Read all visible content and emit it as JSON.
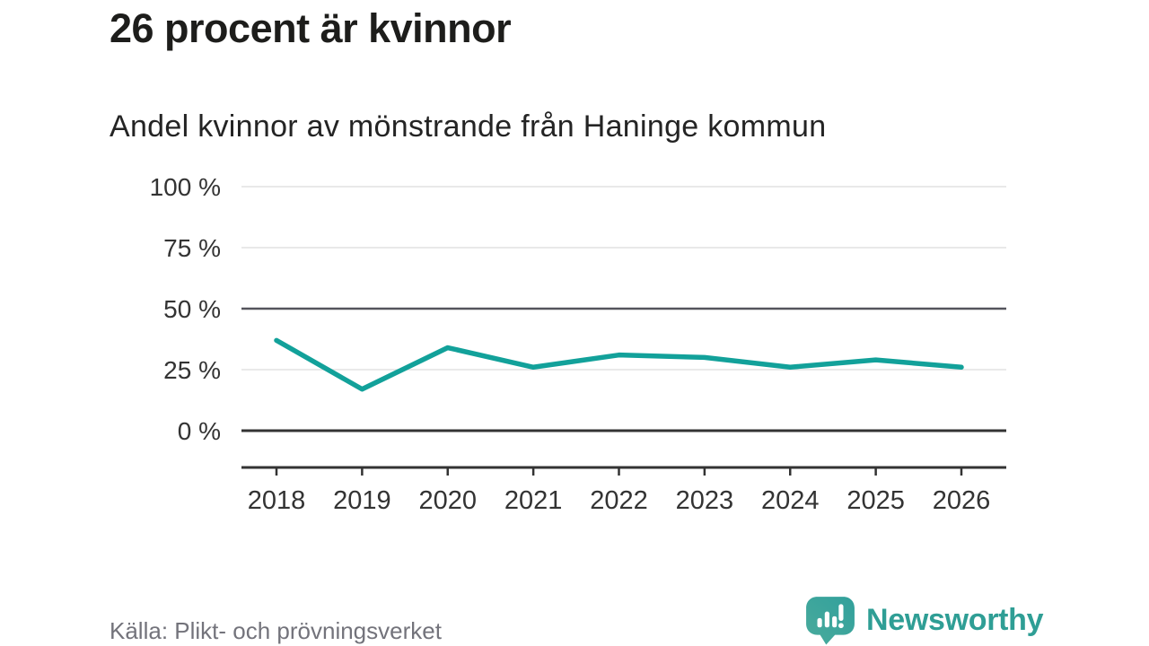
{
  "chart_data": {
    "type": "line",
    "title": "26 procent är kvinnor",
    "subtitle": "Andel kvinnor av mönstrande från Haninge kommun",
    "categories": [
      "2018",
      "2019",
      "2020",
      "2021",
      "2022",
      "2023",
      "2024",
      "2025",
      "2026"
    ],
    "series": [
      {
        "name": "Andel kvinnor av mönstrande",
        "color": "#12a19a",
        "values": [
          37,
          17,
          34,
          26,
          31,
          30,
          26,
          29,
          26
        ]
      }
    ],
    "unit": "%",
    "xlabel": "",
    "ylabel": "",
    "ylim": [
      0,
      100
    ],
    "yticks": [
      {
        "value": 100,
        "label": "100 %"
      },
      {
        "value": 75,
        "label": "75 %"
      },
      {
        "value": 50,
        "label": "50 %"
      },
      {
        "value": 25,
        "label": "25 %"
      },
      {
        "value": 0,
        "label": "0 %"
      }
    ],
    "strong_gridlines": [
      50
    ],
    "grid": "horizontal",
    "legend": "none"
  },
  "footer": {
    "source": "Källa: Plikt- och prövningsverket",
    "logo_text": "Newsworthy",
    "logo_icon": "bar-chart-speech-bubble-icon"
  },
  "colors": {
    "accent": "#12a19a",
    "axis": "#333333",
    "grid_light": "#e2e2e2",
    "grid_strong": "#54545c",
    "title_text": "#1d1d1b",
    "subtitle_text": "#242424",
    "tick_text": "#333333",
    "source_text": "#73737b",
    "logo_teal": "#2f9e95",
    "background": "#ffffff"
  }
}
